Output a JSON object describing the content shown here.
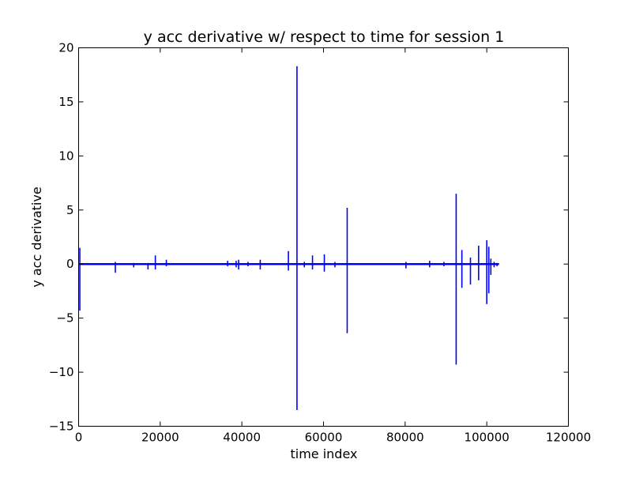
{
  "chart_data": {
    "type": "line",
    "title": "y acc derivative w/ respect to time for session 1",
    "xlabel": "time index",
    "ylabel": "y acc derivative",
    "xlim": [
      0,
      120000
    ],
    "ylim": [
      -15,
      20
    ],
    "xticks": [
      0,
      20000,
      40000,
      60000,
      80000,
      100000,
      120000
    ],
    "yticks": [
      -15,
      -10,
      -5,
      0,
      5,
      10,
      15,
      20
    ],
    "grid": false,
    "legend": "none",
    "series": [
      {
        "color": "#0000ff",
        "baseline": 0,
        "x_range": [
          0,
          103000
        ],
        "spikes": [
          {
            "x": 300,
            "max": 1.5,
            "min": -4.3
          },
          {
            "x": 9000,
            "max": 0.2,
            "min": -0.8
          },
          {
            "x": 13500,
            "max": 0.1,
            "min": -0.3
          },
          {
            "x": 17000,
            "max": 0.1,
            "min": -0.5
          },
          {
            "x": 18800,
            "max": 0.8,
            "min": -0.5
          },
          {
            "x": 21500,
            "max": 0.4,
            "min": -0.2
          },
          {
            "x": 36500,
            "max": 0.3,
            "min": -0.2
          },
          {
            "x": 38600,
            "max": 0.3,
            "min": -0.3
          },
          {
            "x": 39200,
            "max": 0.4,
            "min": -0.5
          },
          {
            "x": 41500,
            "max": 0.2,
            "min": -0.2
          },
          {
            "x": 44500,
            "max": 0.4,
            "min": -0.5
          },
          {
            "x": 51400,
            "max": 1.2,
            "min": -0.6
          },
          {
            "x": 53500,
            "max": 18.3,
            "min": -13.5
          },
          {
            "x": 55300,
            "max": 0.2,
            "min": -0.3
          },
          {
            "x": 57300,
            "max": 0.8,
            "min": -0.5
          },
          {
            "x": 60200,
            "max": 0.9,
            "min": -0.7
          },
          {
            "x": 62800,
            "max": 0.2,
            "min": -0.3
          },
          {
            "x": 65800,
            "max": 5.2,
            "min": -6.4
          },
          {
            "x": 80200,
            "max": 0.2,
            "min": -0.4
          },
          {
            "x": 86000,
            "max": 0.3,
            "min": -0.3
          },
          {
            "x": 89500,
            "max": 0.2,
            "min": -0.2
          },
          {
            "x": 92500,
            "max": 6.5,
            "min": -9.3
          },
          {
            "x": 93900,
            "max": 1.3,
            "min": -2.2
          },
          {
            "x": 96000,
            "max": 0.6,
            "min": -1.9
          },
          {
            "x": 98000,
            "max": 1.7,
            "min": -1.5
          },
          {
            "x": 100000,
            "max": 2.2,
            "min": -3.7
          },
          {
            "x": 100500,
            "max": 1.6,
            "min": -2.7
          },
          {
            "x": 101000,
            "max": 0.5,
            "min": -1.0
          },
          {
            "x": 101800,
            "max": 0.2,
            "min": -0.3
          },
          {
            "x": 102500,
            "max": 0.1,
            "min": -0.2
          }
        ]
      }
    ]
  }
}
